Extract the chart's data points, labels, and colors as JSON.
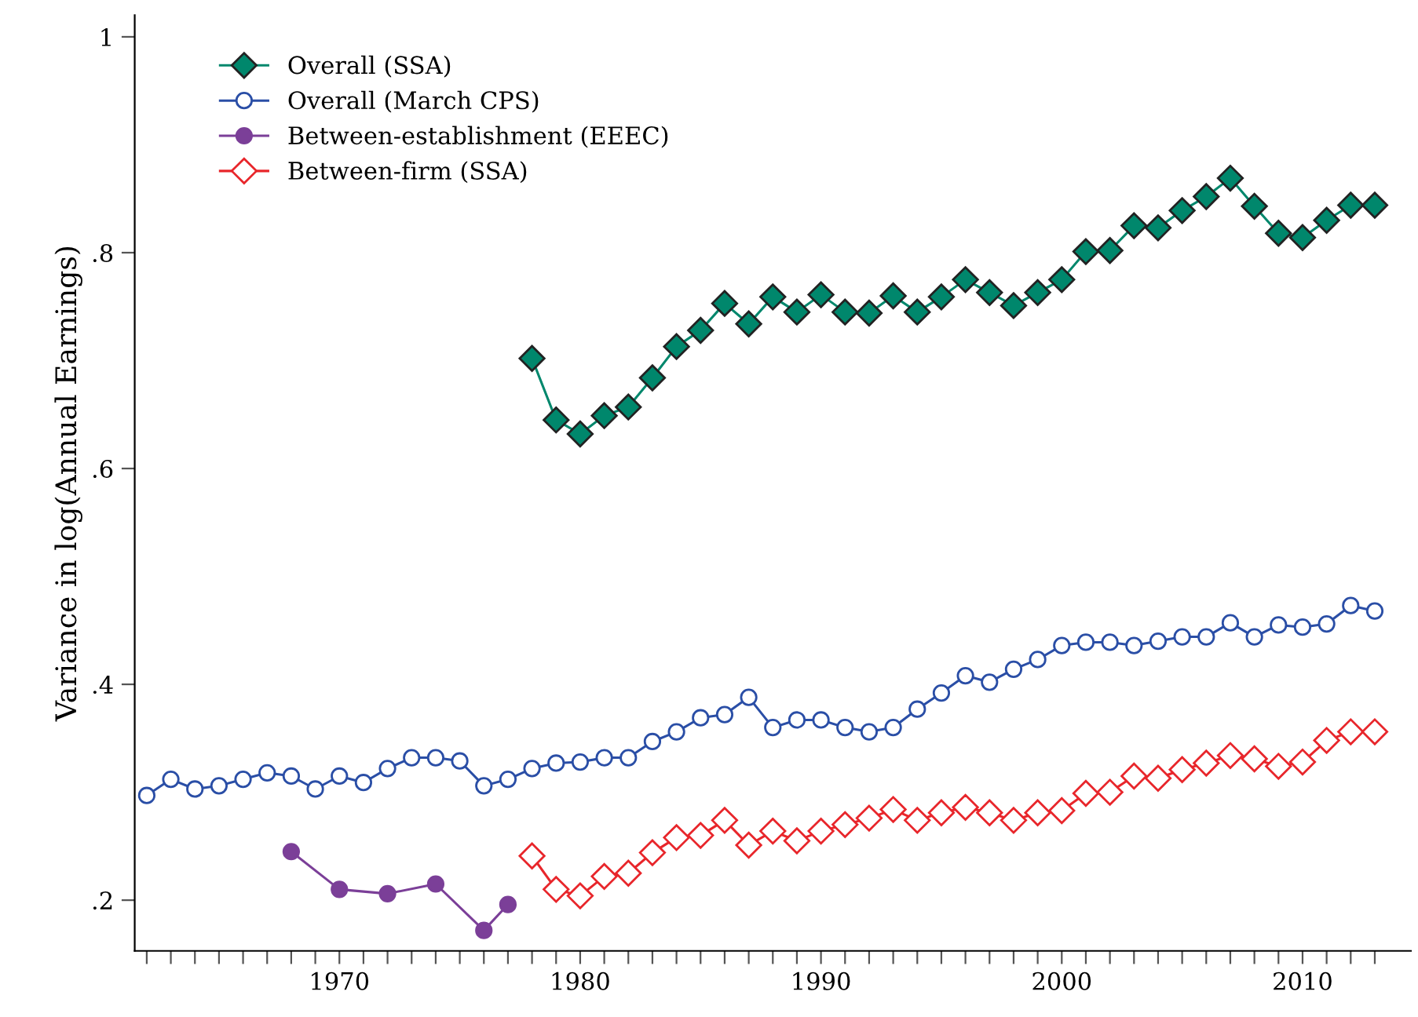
{
  "chart_data": {
    "type": "line",
    "ylabel": "Variance in log(Annual Earnings)",
    "xlim": [
      1961.5,
      2014.5
    ],
    "ylim": [
      0.153,
      1.02
    ],
    "yticks": [
      {
        "value": 0.2,
        "label": ".2"
      },
      {
        "value": 0.4,
        "label": ".4"
      },
      {
        "value": 0.6,
        "label": ".6"
      },
      {
        "value": 0.8,
        "label": ".8"
      },
      {
        "value": 1,
        "label": "1"
      }
    ],
    "xticks": [
      {
        "value": 1962,
        "label": null
      },
      {
        "value": 1963,
        "label": null
      },
      {
        "value": 1964,
        "label": null
      },
      {
        "value": 1965,
        "label": null
      },
      {
        "value": 1966,
        "label": null
      },
      {
        "value": 1967,
        "label": null
      },
      {
        "value": 1968,
        "label": null
      },
      {
        "value": 1969,
        "label": null
      },
      1970,
      {
        "value": 1971,
        "label": null
      },
      {
        "value": 1972,
        "label": null
      },
      {
        "value": 1973,
        "label": null
      },
      {
        "value": 1974,
        "label": null
      },
      {
        "value": 1975,
        "label": null
      },
      {
        "value": 1976,
        "label": null
      },
      {
        "value": 1977,
        "label": null
      },
      {
        "value": 1978,
        "label": null
      },
      {
        "value": 1979,
        "label": null
      },
      1980,
      {
        "value": 1981,
        "label": null
      },
      {
        "value": 1982,
        "label": null
      },
      {
        "value": 1983,
        "label": null
      },
      {
        "value": 1984,
        "label": null
      },
      {
        "value": 1985,
        "label": null
      },
      {
        "value": 1986,
        "label": null
      },
      {
        "value": 1987,
        "label": null
      },
      {
        "value": 1988,
        "label": null
      },
      {
        "value": 1989,
        "label": null
      },
      1990,
      {
        "value": 1991,
        "label": null
      },
      {
        "value": 1992,
        "label": null
      },
      {
        "value": 1993,
        "label": null
      },
      {
        "value": 1994,
        "label": null
      },
      {
        "value": 1995,
        "label": null
      },
      {
        "value": 1996,
        "label": null
      },
      {
        "value": 1997,
        "label": null
      },
      {
        "value": 1998,
        "label": null
      },
      {
        "value": 1999,
        "label": null
      },
      2000,
      {
        "value": 2001,
        "label": null
      },
      {
        "value": 2002,
        "label": null
      },
      {
        "value": 2003,
        "label": null
      },
      {
        "value": 2004,
        "label": null
      },
      {
        "value": 2005,
        "label": null
      },
      {
        "value": 2006,
        "label": null
      },
      {
        "value": 2007,
        "label": null
      },
      {
        "value": 2008,
        "label": null
      },
      {
        "value": 2009,
        "label": null
      },
      2010,
      {
        "value": 2011,
        "label": null
      },
      {
        "value": 2012,
        "label": null
      },
      {
        "value": 2013,
        "label": null
      }
    ],
    "grid": false,
    "legend": "top left",
    "line_style": "solid",
    "series": [
      {
        "name": "Overall (SSA)",
        "color": "#00876c",
        "marker": "diamond",
        "x": [
          1978,
          1979,
          1980,
          1981,
          1982,
          1983,
          1984,
          1985,
          1986,
          1987,
          1988,
          1989,
          1990,
          1991,
          1992,
          1993,
          1994,
          1995,
          1996,
          1997,
          1998,
          1999,
          2000,
          2001,
          2002,
          2003,
          2004,
          2005,
          2006,
          2007,
          2008,
          2009,
          2010,
          2011,
          2012,
          2013
        ],
        "values": [
          0.702,
          0.645,
          0.632,
          0.649,
          0.657,
          0.684,
          0.713,
          0.728,
          0.753,
          0.734,
          0.759,
          0.745,
          0.761,
          0.745,
          0.744,
          0.76,
          0.745,
          0.759,
          0.775,
          0.763,
          0.751,
          0.763,
          0.775,
          0.801,
          0.802,
          0.825,
          0.823,
          0.839,
          0.852,
          0.869,
          0.843,
          0.818,
          0.814,
          0.83,
          0.844,
          0.844
        ]
      },
      {
        "name": "Overall (March CPS)",
        "color": "#2a4ea6",
        "marker": "circle",
        "x": [
          1962,
          1963,
          1964,
          1965,
          1966,
          1967,
          1968,
          1969,
          1970,
          1971,
          1972,
          1973,
          1974,
          1975,
          1976,
          1977,
          1978,
          1979,
          1980,
          1981,
          1982,
          1983,
          1984,
          1985,
          1986,
          1987,
          1988,
          1989,
          1990,
          1991,
          1992,
          1993,
          1994,
          1995,
          1996,
          1997,
          1998,
          1999,
          2000,
          2001,
          2002,
          2003,
          2004,
          2005,
          2006,
          2007,
          2008,
          2009,
          2010,
          2011,
          2012,
          2013
        ],
        "values": [
          0.297,
          0.312,
          0.303,
          0.306,
          0.312,
          0.318,
          0.315,
          0.303,
          0.315,
          0.309,
          0.322,
          0.332,
          0.332,
          0.329,
          0.306,
          0.312,
          0.322,
          0.327,
          0.328,
          0.332,
          0.332,
          0.347,
          0.356,
          0.369,
          0.372,
          0.388,
          0.36,
          0.367,
          0.367,
          0.36,
          0.356,
          0.36,
          0.377,
          0.392,
          0.408,
          0.402,
          0.414,
          0.423,
          0.436,
          0.439,
          0.439,
          0.436,
          0.44,
          0.444,
          0.444,
          0.457,
          0.444,
          0.455,
          0.453,
          0.456,
          0.473,
          0.468
        ]
      },
      {
        "name": "Between-establishment (EEEC)",
        "color": "#7b3f98",
        "marker": "circle",
        "x": [
          1968,
          1970,
          1972,
          1974,
          1976,
          1977
        ],
        "values": [
          0.245,
          0.21,
          0.206,
          0.215,
          0.172,
          0.196
        ]
      },
      {
        "name": "Between-firm (SSA)",
        "color": "#e8262b",
        "marker": "diamond",
        "x": [
          1978,
          1979,
          1980,
          1981,
          1982,
          1983,
          1984,
          1985,
          1986,
          1987,
          1988,
          1989,
          1990,
          1991,
          1992,
          1993,
          1994,
          1995,
          1996,
          1997,
          1998,
          1999,
          2000,
          2001,
          2002,
          2003,
          2004,
          2005,
          2006,
          2007,
          2008,
          2009,
          2010,
          2011,
          2012,
          2013
        ],
        "values": [
          0.241,
          0.21,
          0.204,
          0.222,
          0.225,
          0.244,
          0.258,
          0.26,
          0.274,
          0.251,
          0.264,
          0.255,
          0.264,
          0.27,
          0.276,
          0.284,
          0.274,
          0.281,
          0.286,
          0.281,
          0.274,
          0.281,
          0.283,
          0.299,
          0.3,
          0.315,
          0.313,
          0.321,
          0.327,
          0.334,
          0.331,
          0.324,
          0.328,
          0.348,
          0.356,
          0.356
        ]
      }
    ]
  }
}
